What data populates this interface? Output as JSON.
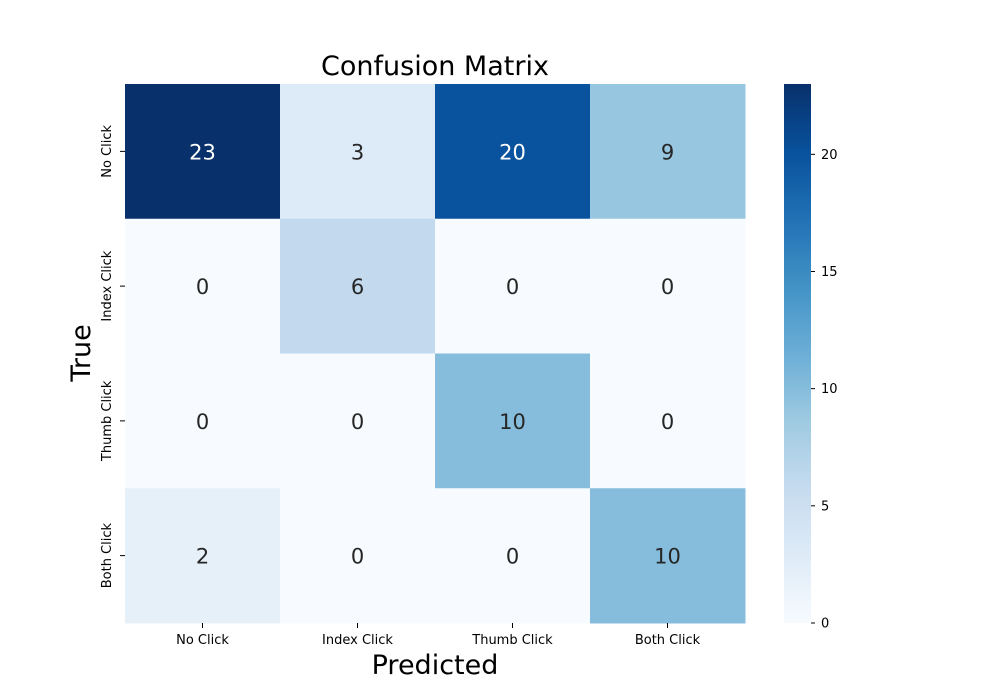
{
  "chart_data": {
    "type": "heatmap",
    "title": "Confusion Matrix",
    "xlabel": "Predicted",
    "ylabel": "True",
    "x_categories": [
      "No Click",
      "Index Click",
      "Thumb Click",
      "Both Click"
    ],
    "y_categories": [
      "No Click",
      "Index Click",
      "Thumb Click",
      "Both Click"
    ],
    "values": [
      [
        23,
        3,
        20,
        9
      ],
      [
        0,
        6,
        0,
        0
      ],
      [
        0,
        0,
        10,
        0
      ],
      [
        2,
        0,
        0,
        10
      ]
    ],
    "colormap": "Blues",
    "colorbar": {
      "range": [
        0,
        23
      ],
      "ticks": [
        0,
        5,
        10,
        15,
        20
      ],
      "tick_labels": [
        "0",
        "5",
        "10",
        "15",
        "20"
      ]
    }
  }
}
